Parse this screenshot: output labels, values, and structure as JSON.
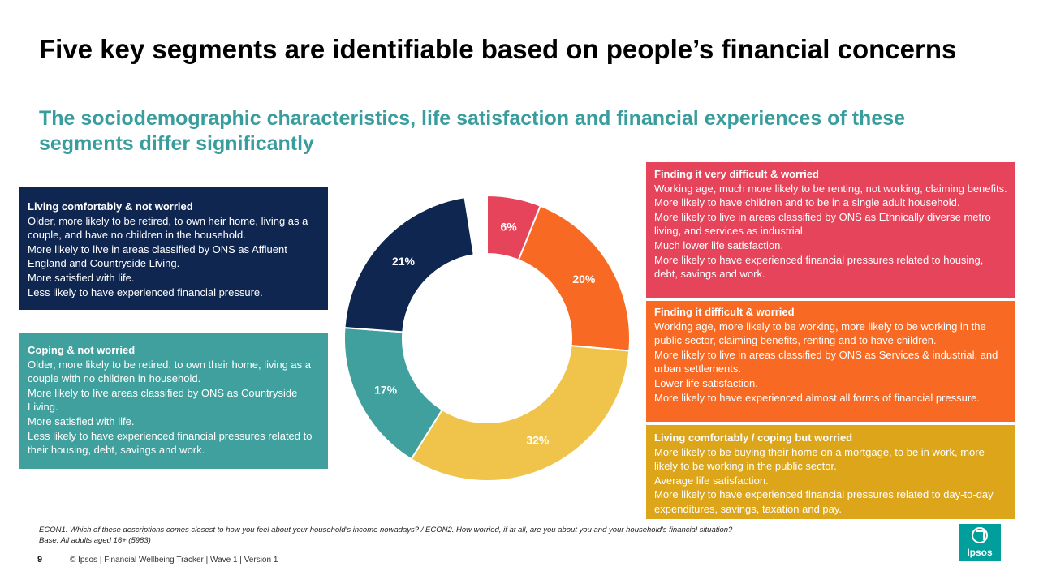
{
  "header": {
    "title": "Five key segments are identifiable based on people’s financial concerns",
    "subtitle": "The sociodemographic characteristics, life satisfaction and financial experiences of these segments differ significantly"
  },
  "chart_data": {
    "type": "pie",
    "donut": true,
    "categories": [
      "Finding it very difficult & worried",
      "Finding it difficult & worried",
      "Living comfortably / coping but worried",
      "Coping & not worried",
      "Living comfortably & not worried"
    ],
    "values": [
      6,
      20,
      32,
      17,
      21
    ],
    "labels": [
      "6%",
      "20%",
      "32%",
      "17%",
      "21%"
    ],
    "colors": [
      "#e5445a",
      "#f86a23",
      "#f0c34a",
      "#40a09d",
      "#0e2650"
    ]
  },
  "segments": {
    "living_comfortably": {
      "title": "Living comfortably  & not worried",
      "lines": [
        "Older, more likely to be retired, to own heir home, living as a couple, and have no children in the household.",
        "More likely to live in areas classified by ONS as Affluent England and Countryside Living.",
        "More satisfied with life.",
        "Less likely to have experienced financial pressure."
      ]
    },
    "coping": {
      "title": "Coping & not worried",
      "lines": [
        "Older, more likely to be retired, to own their home, living as a couple with no children in household.",
        "More likely to live areas classified by ONS as Countryside Living.",
        "More satisfied with life.",
        "Less likely to have experienced financial pressures related to their housing, debt, savings and work."
      ]
    },
    "very_difficult": {
      "title": "Finding it very difficult & worried",
      "lines": [
        "Working age, much more likely to be renting, not working, claiming benefits. More likely to have children and to be in a single adult household.",
        "More likely to live in areas classified by ONS as Ethnically diverse metro living, and services as industrial.",
        "Much lower life satisfaction.",
        "More likely to have experienced financial pressures related to housing, debt, savings and work."
      ]
    },
    "difficult": {
      "title": "Finding it difficult & worried",
      "lines": [
        "Working age, more likely to be working, more likely to be working in the public sector, claiming benefits, renting and to have children.",
        "More likely to live in areas classified by ONS as Services & industrial, and urban settlements.",
        "Lower life satisfaction.",
        "More likely to have experienced almost all forms of financial pressure."
      ]
    },
    "coping_worried": {
      "title": "Living comfortably  / coping but worried",
      "lines": [
        "More likely to be buying their home on a mortgage, to be in work, more likely to be working in the public sector.",
        "Average life satisfaction.",
        "More likely to have experienced financial pressures related to day-to-day expenditures, savings, taxation and pay."
      ]
    }
  },
  "footer": {
    "question": "ECON1. Which of these descriptions comes closest to how you feel about your household's income nowadays? / ECON2. How worried, if at all, are you about you and your household's financial situation?",
    "base": "Base: All adults aged 16+ (5983)",
    "page_number": "9",
    "copyright": "© Ipsos | Financial Wellbeing Tracker | Wave 1 | Version 1",
    "logo_text": "Ipsos"
  }
}
